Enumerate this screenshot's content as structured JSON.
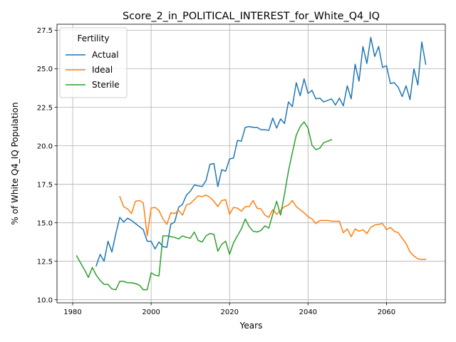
{
  "chart_data": {
    "type": "line",
    "title": "Score_2_in_POLITICAL_INTEREST_for_White_Q4_IQ",
    "xlabel": "Years",
    "ylabel": "% of White Q4_IQ Population",
    "xlim": [
      1976,
      2075
    ],
    "ylim": [
      9.8,
      27.9
    ],
    "xticks": [
      1980,
      2000,
      2020,
      2040,
      2060
    ],
    "yticks": [
      10.0,
      12.5,
      15.0,
      17.5,
      20.0,
      22.5,
      25.0,
      27.5
    ],
    "grid": true,
    "legend": {
      "title": "Fertility",
      "position": "upper left"
    },
    "series": [
      {
        "name": "Actual",
        "color": "#1f77b4",
        "x": [
          1986,
          1987,
          1988,
          1989,
          1990,
          1991,
          1992,
          1993,
          1994,
          1995,
          1996,
          1997,
          1998,
          1999,
          2000,
          2001,
          2002,
          2003,
          2004,
          2005,
          2006,
          2007,
          2008,
          2009,
          2010,
          2011,
          2012,
          2013,
          2014,
          2015,
          2016,
          2017,
          2018,
          2019,
          2020,
          2021,
          2022,
          2023,
          2024,
          2025,
          2026,
          2027,
          2028,
          2029,
          2030,
          2031,
          2032,
          2033,
          2034,
          2035,
          2036,
          2037,
          2038,
          2039,
          2040,
          2041,
          2042,
          2043,
          2044,
          2045,
          2046,
          2047,
          2048,
          2049,
          2050,
          2051,
          2052,
          2053,
          2054,
          2055,
          2056,
          2057,
          2058,
          2059,
          2060,
          2061,
          2062,
          2063,
          2064,
          2065,
          2066,
          2067,
          2068,
          2069,
          2070
        ],
        "y": [
          12.2,
          12.95,
          12.5,
          13.8,
          13.1,
          14.3,
          15.35,
          15.05,
          15.3,
          15.15,
          14.95,
          14.75,
          14.55,
          13.8,
          13.8,
          13.3,
          13.75,
          13.45,
          13.4,
          14.9,
          15.05,
          16.0,
          16.2,
          16.8,
          17.05,
          17.45,
          17.4,
          17.35,
          17.75,
          18.8,
          18.85,
          17.35,
          18.45,
          18.35,
          19.15,
          19.2,
          20.35,
          20.3,
          21.2,
          21.25,
          21.2,
          21.2,
          21.05,
          21.05,
          21.0,
          21.8,
          21.15,
          21.75,
          21.45,
          22.85,
          22.55,
          24.1,
          23.25,
          24.35,
          23.4,
          23.6,
          23.05,
          23.1,
          22.85,
          22.95,
          23.05,
          22.65,
          23.1,
          22.6,
          23.9,
          23.05,
          25.3,
          24.2,
          26.45,
          25.35,
          27.05,
          25.8,
          26.45,
          25.1,
          25.2,
          24.05,
          24.1,
          23.8,
          23.2,
          23.9,
          23.0,
          25.0,
          23.95,
          26.75,
          25.3
        ]
      },
      {
        "name": "Ideal",
        "color": "#ff7f0e",
        "x": [
          1992,
          1993,
          1994,
          1995,
          1996,
          1997,
          1998,
          1999,
          2000,
          2001,
          2002,
          2003,
          2004,
          2005,
          2006,
          2007,
          2008,
          2009,
          2010,
          2011,
          2012,
          2013,
          2014,
          2015,
          2016,
          2017,
          2018,
          2019,
          2020,
          2021,
          2022,
          2023,
          2024,
          2025,
          2026,
          2027,
          2028,
          2029,
          2030,
          2031,
          2032,
          2033,
          2034,
          2035,
          2036,
          2037,
          2038,
          2039,
          2040,
          2041,
          2042,
          2043,
          2044,
          2045,
          2046,
          2047,
          2048,
          2049,
          2050,
          2051,
          2052,
          2053,
          2054,
          2055,
          2056,
          2057,
          2058,
          2059,
          2060,
          2061,
          2062,
          2063,
          2064,
          2065,
          2066,
          2067,
          2068,
          2069,
          2070
        ],
        "y": [
          16.7,
          16.05,
          15.9,
          15.6,
          16.4,
          16.45,
          16.3,
          14.15,
          15.95,
          16.0,
          15.8,
          15.25,
          14.9,
          15.65,
          15.6,
          15.8,
          15.5,
          16.15,
          16.25,
          16.5,
          16.75,
          16.7,
          16.8,
          16.65,
          16.4,
          16.05,
          16.45,
          16.5,
          15.55,
          16.0,
          15.95,
          15.75,
          16.05,
          16.05,
          16.45,
          15.95,
          15.9,
          15.5,
          15.35,
          15.85,
          15.55,
          15.8,
          16.05,
          16.15,
          16.45,
          16.05,
          15.85,
          15.65,
          15.4,
          15.25,
          14.95,
          15.15,
          15.15,
          15.15,
          15.1,
          15.1,
          15.1,
          14.35,
          14.6,
          14.1,
          14.6,
          14.45,
          14.55,
          14.3,
          14.7,
          14.85,
          14.9,
          14.95,
          14.55,
          14.7,
          14.45,
          14.35,
          14.0,
          13.65,
          13.1,
          12.85,
          12.65,
          12.62,
          12.63
        ]
      },
      {
        "name": "Sterile",
        "color": "#2ca02c",
        "x": [
          1981,
          1982,
          1983,
          1984,
          1985,
          1986,
          1987,
          1988,
          1989,
          1990,
          1991,
          1992,
          1993,
          1994,
          1995,
          1996,
          1997,
          1998,
          1999,
          2000,
          2001,
          2002,
          2003,
          2004,
          2005,
          2006,
          2007,
          2008,
          2009,
          2010,
          2011,
          2012,
          2013,
          2014,
          2015,
          2016,
          2017,
          2018,
          2019,
          2020,
          2021,
          2022,
          2023,
          2024,
          2025,
          2026,
          2027,
          2028,
          2029,
          2030,
          2031,
          2032,
          2033,
          2034,
          2035,
          2036,
          2037,
          2038,
          2039,
          2040,
          2041,
          2042,
          2043,
          2044,
          2045,
          2046
        ],
        "y": [
          12.85,
          12.4,
          11.95,
          11.45,
          12.1,
          11.6,
          11.25,
          11.0,
          11.0,
          10.7,
          10.65,
          11.2,
          11.2,
          11.1,
          11.1,
          11.05,
          10.95,
          10.65,
          10.65,
          11.75,
          11.6,
          11.55,
          14.15,
          14.15,
          14.1,
          14.05,
          13.95,
          14.15,
          14.05,
          14.0,
          14.4,
          13.85,
          13.75,
          14.15,
          14.3,
          14.25,
          13.15,
          13.6,
          13.8,
          12.95,
          13.7,
          14.15,
          14.6,
          15.25,
          14.75,
          14.45,
          14.4,
          14.5,
          14.8,
          14.65,
          15.55,
          16.4,
          15.5,
          16.85,
          18.35,
          19.55,
          20.7,
          21.25,
          21.55,
          21.15,
          20.05,
          19.75,
          19.85,
          20.2,
          20.3,
          20.4
        ]
      }
    ]
  }
}
